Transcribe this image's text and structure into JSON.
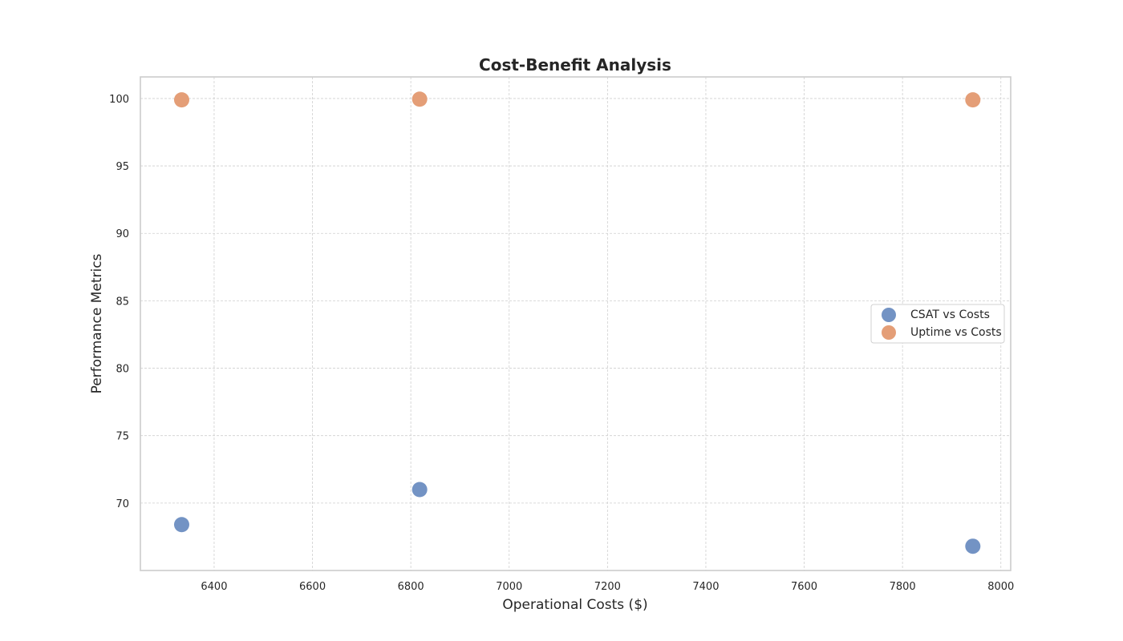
{
  "chart_data": {
    "type": "scatter",
    "title": "Cost-Benefit Analysis",
    "xlabel": "Operational Costs ($)",
    "ylabel": "Performance Metrics",
    "xlim": [
      6250,
      8020
    ],
    "ylim": [
      65.0,
      101.6
    ],
    "xticks": [
      6400,
      6600,
      6800,
      7000,
      7200,
      7400,
      7600,
      7800,
      8000
    ],
    "yticks": [
      70,
      75,
      80,
      85,
      90,
      95,
      100
    ],
    "grid": true,
    "legend_position": "center-right",
    "series": [
      {
        "name": "CSAT vs Costs",
        "color": "#7393c4",
        "x": [
          6334,
          6818,
          7943
        ],
        "y": [
          68.4,
          71.0,
          66.8
        ]
      },
      {
        "name": "Uptime vs Costs",
        "color": "#e49e77",
        "x": [
          6334,
          6818,
          7943
        ],
        "y": [
          99.9,
          99.95,
          99.9
        ]
      }
    ]
  }
}
